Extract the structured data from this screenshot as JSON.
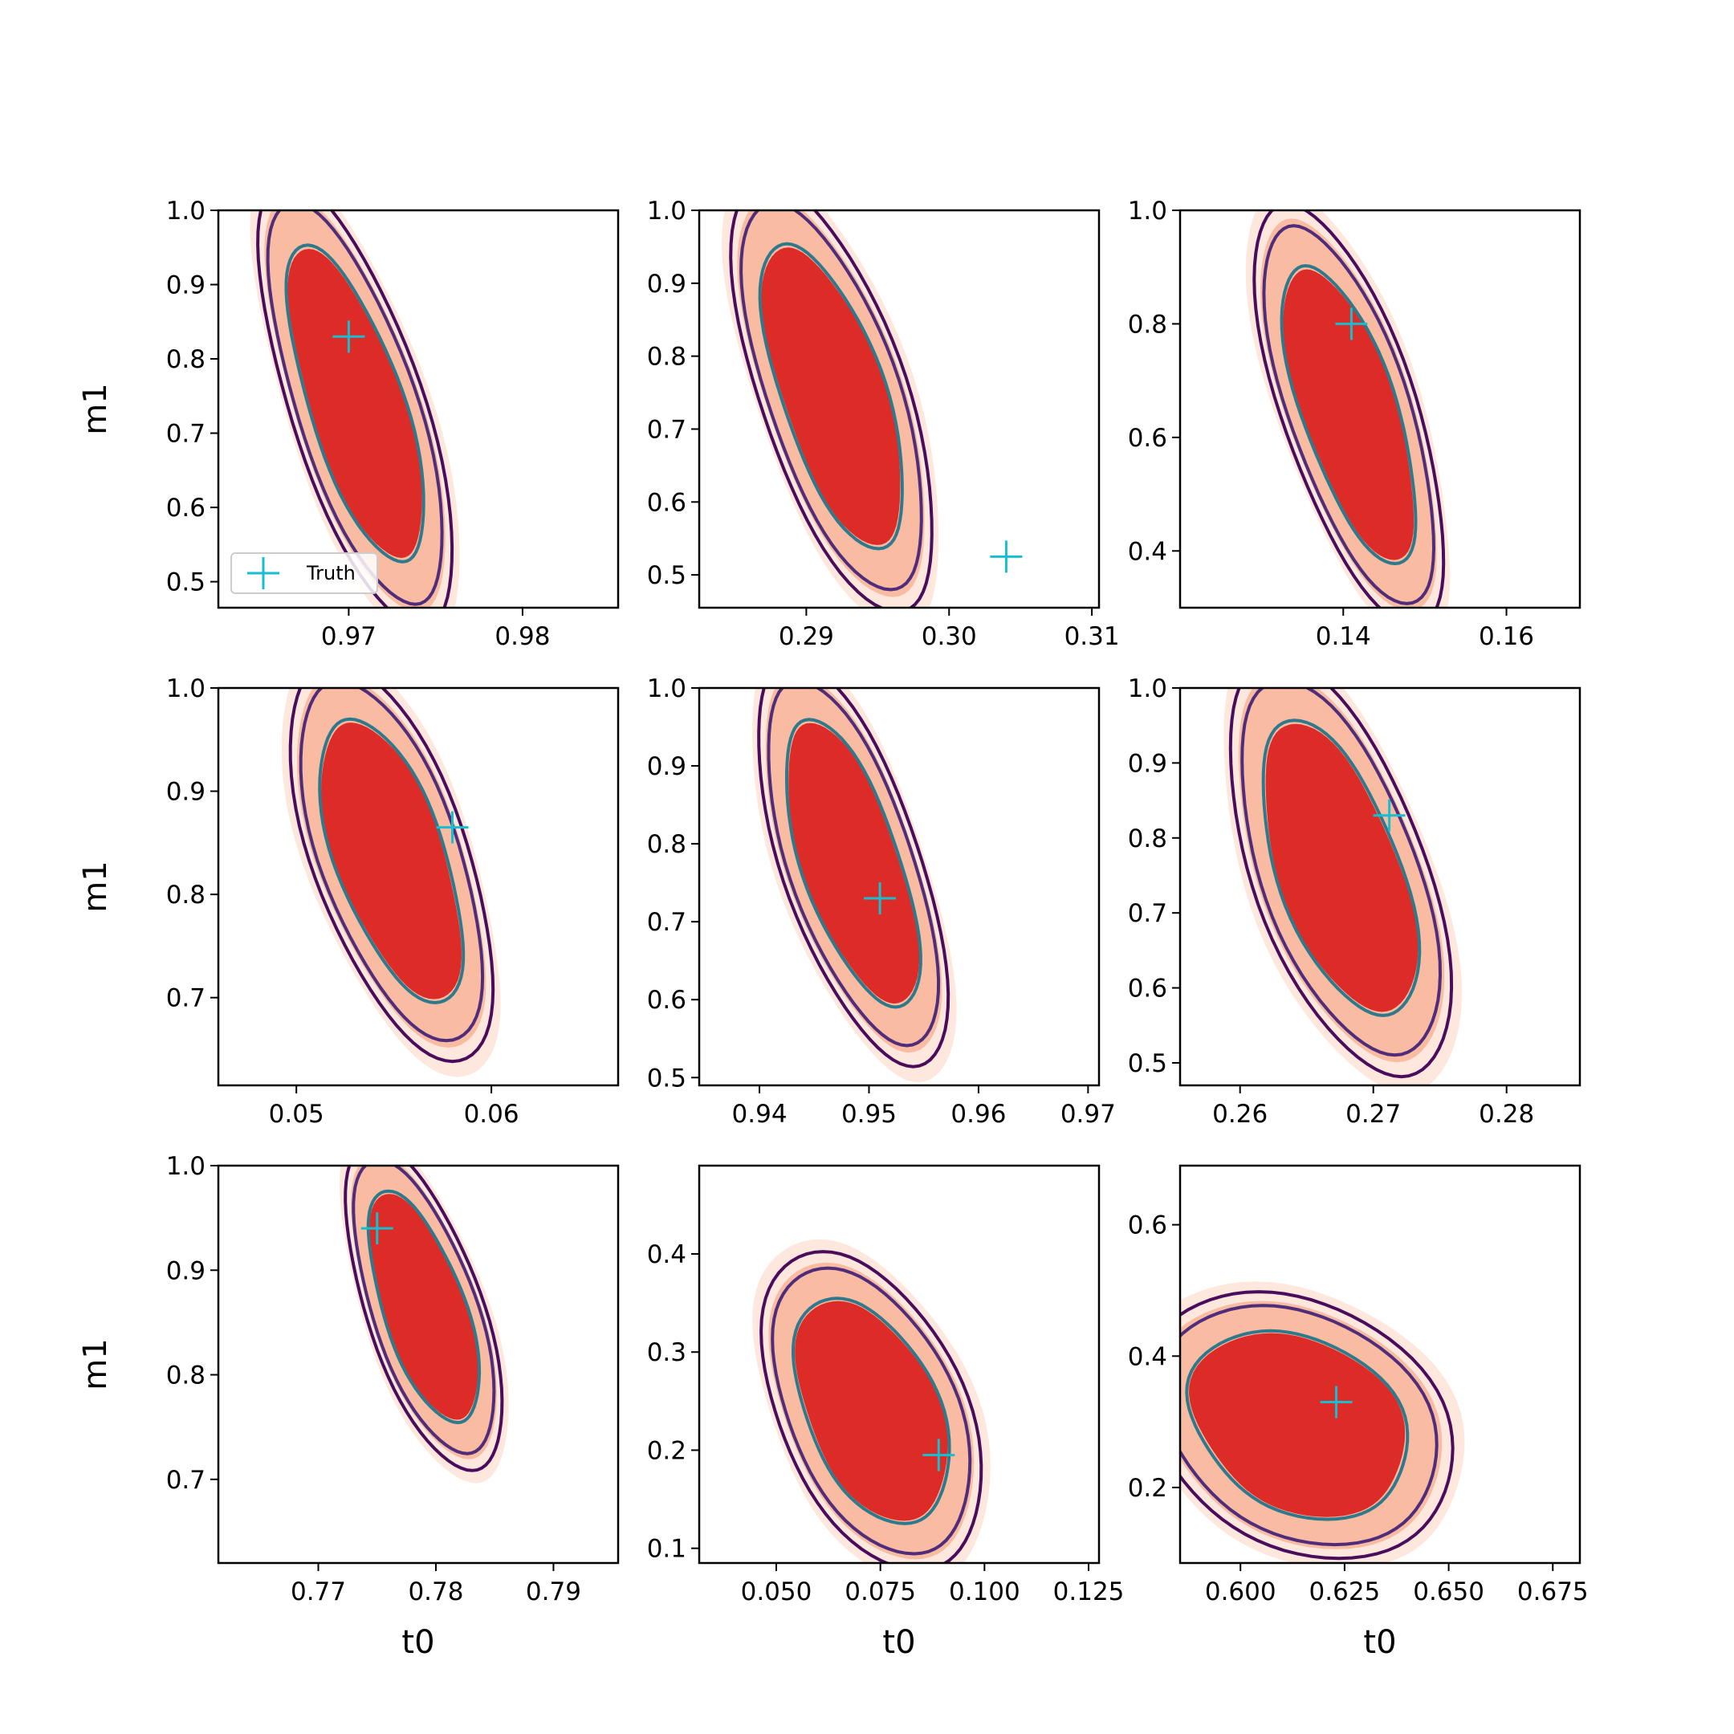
{
  "figure": {
    "xlabel": "t0",
    "ylabel": "m1",
    "legend": {
      "label": "Truth",
      "placement": "lower-left of first panel"
    },
    "colors": {
      "fill_outer": "#fee8dd",
      "fill_mid": "#f9bba2",
      "fill_inner": "#dd2b27",
      "contour_outer": "#4a0d5c",
      "contour_mid": "#4f2d7a",
      "contour_inner": "#2e7a8c",
      "truth_marker": "#17becf",
      "axis": "#000000"
    }
  },
  "chart_data": [
    {
      "type": "contour",
      "panel": 1,
      "xlim": [
        0.9625,
        0.9855
      ],
      "ylim": [
        0.465,
        1.0
      ],
      "xticks": [
        0.97,
        0.98
      ],
      "xtick_labels": [
        "0.97",
        "0.98"
      ],
      "yticks": [
        0.5,
        0.6,
        0.7,
        0.8,
        0.9,
        1.0
      ],
      "ytick_labels": [
        "0.5",
        "0.6",
        "0.7",
        "0.8",
        "0.9",
        "1.0"
      ],
      "xlabel": "",
      "ylabel": "m1",
      "truth": [
        0.97,
        0.83
      ],
      "legend": "Truth",
      "contour_center": [
        0.9716,
        0.74
      ],
      "upper_m1": 1.0,
      "lower_m1": 0.48,
      "width_t0": 0.0056
    },
    {
      "type": "contour",
      "panel": 2,
      "xlim": [
        0.2825,
        0.3105
      ],
      "ylim": [
        0.455,
        1.0
      ],
      "xticks": [
        0.29,
        0.3,
        0.31
      ],
      "xtick_labels": [
        "0.29",
        "0.30",
        "0.31"
      ],
      "yticks": [
        0.5,
        0.6,
        0.7,
        0.8,
        0.9,
        1.0
      ],
      "ytick_labels": [
        "0.5",
        "0.6",
        "0.7",
        "0.8",
        "0.9",
        "1.0"
      ],
      "xlabel": "",
      "ylabel": "",
      "truth": [
        0.304,
        0.525
      ],
      "contour_center": [
        0.2935,
        0.74
      ],
      "upper_m1": 1.0,
      "lower_m1": 0.49,
      "width_t0": 0.0075
    },
    {
      "type": "contour",
      "panel": 3,
      "xlim": [
        0.12,
        0.169
      ],
      "ylim": [
        0.3,
        1.0
      ],
      "xticks": [
        0.14,
        0.16
      ],
      "xtick_labels": [
        "0.14",
        "0.16"
      ],
      "yticks": [
        0.4,
        0.6,
        0.8,
        1.0
      ],
      "ytick_labels": [
        "0.4",
        "0.6",
        "0.8",
        "1.0"
      ],
      "xlabel": "",
      "ylabel": "",
      "truth": [
        0.141,
        0.8
      ],
      "contour_center": [
        0.1435,
        0.63
      ],
      "upper_m1": 0.96,
      "lower_m1": 0.32,
      "width_t0": 0.012
    },
    {
      "type": "contour",
      "panel": 4,
      "xlim": [
        0.046,
        0.0665
      ],
      "ylim": [
        0.615,
        1.0
      ],
      "xticks": [
        0.05,
        0.06
      ],
      "xtick_labels": [
        "0.05",
        "0.06"
      ],
      "yticks": [
        0.7,
        0.8,
        0.9,
        1.0
      ],
      "ytick_labels": [
        "0.7",
        "0.8",
        "0.9",
        "1.0"
      ],
      "xlabel": "",
      "ylabel": "m1",
      "truth": [
        0.058,
        0.865
      ],
      "contour_center": [
        0.0562,
        0.83
      ],
      "upper_m1": 1.0,
      "lower_m1": 0.665,
      "width_t0": 0.0058
    },
    {
      "type": "contour",
      "panel": 5,
      "xlim": [
        0.9345,
        0.971
      ],
      "ylim": [
        0.49,
        1.0
      ],
      "xticks": [
        0.94,
        0.95,
        0.96,
        0.97
      ],
      "xtick_labels": [
        "0.94",
        "0.95",
        "0.96",
        "0.97"
      ],
      "yticks": [
        0.5,
        0.6,
        0.7,
        0.8,
        0.9,
        1.0
      ],
      "ytick_labels": [
        "0.5",
        "0.6",
        "0.7",
        "0.8",
        "0.9",
        "1.0"
      ],
      "xlabel": "",
      "ylabel": "",
      "truth": [
        0.951,
        0.73
      ],
      "contour_center": [
        0.9505,
        0.78
      ],
      "upper_m1": 1.0,
      "lower_m1": 0.55,
      "width_t0": 0.0092
    },
    {
      "type": "contour",
      "panel": 6,
      "xlim": [
        0.2555,
        0.2855
      ],
      "ylim": [
        0.47,
        1.0
      ],
      "xticks": [
        0.26,
        0.27,
        0.28
      ],
      "xtick_labels": [
        "0.26",
        "0.27",
        "0.28"
      ],
      "yticks": [
        0.5,
        0.6,
        0.7,
        0.8,
        0.9,
        1.0
      ],
      "ytick_labels": [
        "0.5",
        "0.6",
        "0.7",
        "0.8",
        "0.9",
        "1.0"
      ],
      "xlabel": "",
      "ylabel": "",
      "truth": [
        0.2712,
        0.83
      ],
      "contour_center": [
        0.2695,
        0.76
      ],
      "upper_m1": 1.0,
      "lower_m1": 0.52,
      "width_t0": 0.0095
    },
    {
      "type": "contour",
      "panel": 7,
      "xlim": [
        0.7615,
        0.7955
      ],
      "ylim": [
        0.62,
        1.0
      ],
      "xticks": [
        0.77,
        0.78,
        0.79
      ],
      "xtick_labels": [
        "0.77",
        "0.78",
        "0.79"
      ],
      "yticks": [
        0.7,
        0.8,
        0.9,
        1.0
      ],
      "ytick_labels": [
        "0.7",
        "0.8",
        "0.9",
        "1.0"
      ],
      "xlabel": "t0",
      "ylabel": "m1",
      "truth": [
        0.775,
        0.94
      ],
      "contour_center": [
        0.7805,
        0.87
      ],
      "upper_m1": 1.0,
      "lower_m1": 0.73,
      "width_t0": 0.0072
    },
    {
      "type": "contour",
      "panel": 8,
      "xlim": [
        0.0315,
        0.1275
      ],
      "ylim": [
        0.085,
        0.49
      ],
      "xticks": [
        0.05,
        0.075,
        0.1,
        0.125
      ],
      "xtick_labels": [
        "0.050",
        "0.075",
        "0.100",
        "0.125"
      ],
      "yticks": [
        0.1,
        0.2,
        0.3,
        0.4
      ],
      "ytick_labels": [
        "0.1",
        "0.2",
        "0.3",
        "0.4"
      ],
      "xlabel": "t0",
      "ylabel": "",
      "truth": [
        0.089,
        0.195
      ],
      "contour_center": [
        0.08,
        0.23
      ],
      "upper_m1": 0.38,
      "lower_m1": 0.1,
      "width_t0": 0.033
    },
    {
      "type": "contour",
      "panel": 9,
      "xlim": [
        0.5855,
        0.6815
      ],
      "ylim": [
        0.085,
        0.69
      ],
      "xticks": [
        0.6,
        0.625,
        0.65,
        0.675
      ],
      "xtick_labels": [
        "0.600",
        "0.625",
        "0.650",
        "0.675"
      ],
      "yticks": [
        0.2,
        0.4,
        0.6
      ],
      "ytick_labels": [
        "0.2",
        "0.4",
        "0.6"
      ],
      "xlabel": "t0",
      "ylabel": "",
      "truth": [
        0.623,
        0.33
      ],
      "contour_center": [
        0.625,
        0.28
      ],
      "upper_m1": 0.47,
      "lower_m1": 0.12,
      "width_t0": 0.05
    }
  ]
}
